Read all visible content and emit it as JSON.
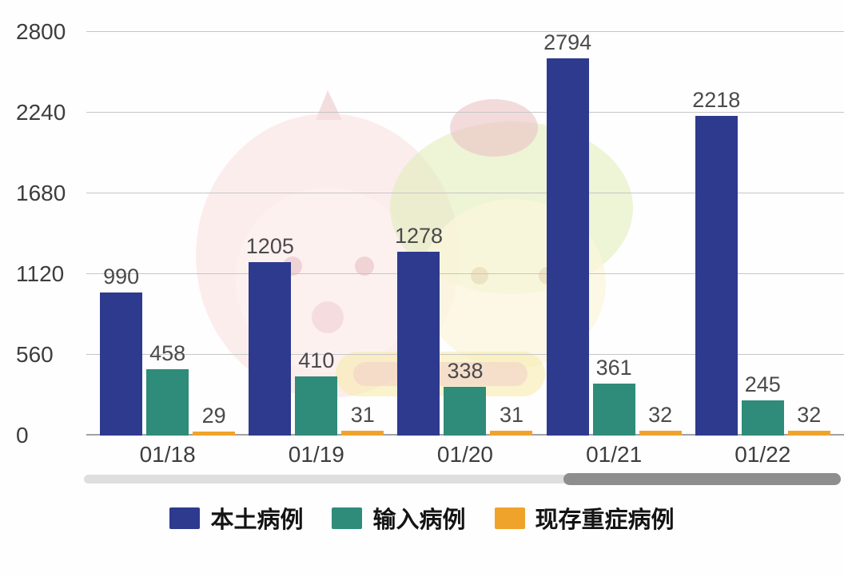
{
  "chart_data": {
    "type": "bar",
    "title": "",
    "xlabel": "",
    "ylabel": "",
    "categories": [
      "01/18",
      "01/19",
      "01/20",
      "01/21",
      "01/22"
    ],
    "series": [
      {
        "key": "local",
        "name": "本土病例",
        "color": "#2e3a8e",
        "values": [
          990,
          1205,
          1278,
          2794,
          2218
        ]
      },
      {
        "key": "imported",
        "name": "输入病例",
        "color": "#2f8b7a",
        "values": [
          458,
          410,
          338,
          361,
          245
        ]
      },
      {
        "key": "severe",
        "name": "现存重症病例",
        "color": "#f0a32b",
        "values": [
          29,
          31,
          31,
          32,
          32
        ]
      }
    ],
    "y_ticks": [
      0,
      560,
      1120,
      1680,
      2240,
      2800
    ],
    "ylim": [
      0,
      2800
    ],
    "grid": true,
    "show_value_labels": true,
    "legend_position": "bottom"
  },
  "ui": {
    "gridline_color": "#c6c6c6",
    "axis_text_color": "#3d3d3d",
    "value_label_color": "#4a4a4a",
    "scrollbar_track_color": "#dedede",
    "scrollbar_thumb_color": "#8e8e8e"
  },
  "watermark": {
    "present": true,
    "description": "faded pastel cartoon mascot watermark behind the chart"
  }
}
